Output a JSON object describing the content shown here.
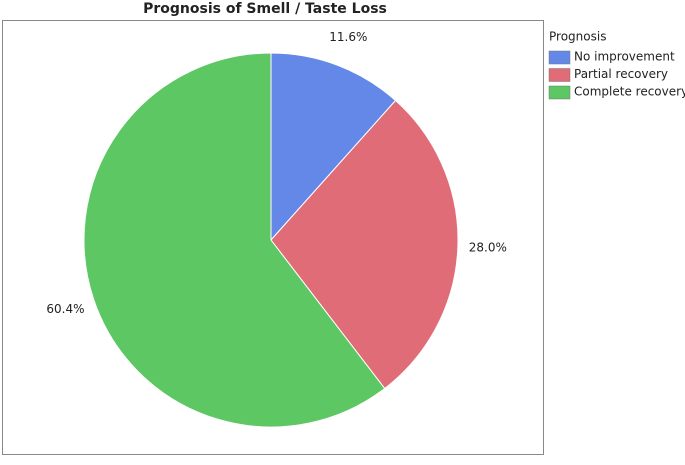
{
  "chart_data": {
    "type": "pie",
    "title": "Prognosis of Smell / Taste Loss",
    "legend_title": "Prognosis",
    "categories": [
      "No improvement",
      "Partial recovery",
      "Complete recovery"
    ],
    "values": [
      11.6,
      28.0,
      60.4
    ],
    "value_labels": [
      "11.6%",
      "28.0%",
      "60.4%"
    ],
    "colors": [
      "#6488e8",
      "#e06c78",
      "#5cc763"
    ],
    "legend_position": "right"
  }
}
